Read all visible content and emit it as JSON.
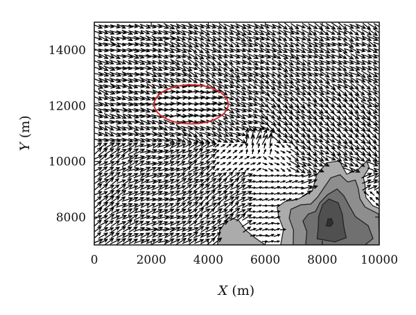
{
  "chart_data": {
    "type": "quiver",
    "xlabel_var": "X",
    "xlabel_unit": " (m)",
    "ylabel_var": "Y",
    "ylabel_unit": " (m)",
    "xlim": [
      0,
      10000
    ],
    "ylim": [
      7000,
      15000
    ],
    "x_ticks": [
      0,
      2000,
      4000,
      6000,
      8000,
      10000
    ],
    "y_ticks": [
      8000,
      10000,
      12000,
      14000
    ],
    "grid": false,
    "legend": "none",
    "ellipse_annotation": {
      "cx": 3400,
      "cy": 12050,
      "rx": 1300,
      "ry": 700,
      "color": "#d42a2a"
    },
    "terrain_contours": [
      {
        "level": 1,
        "fill": "#ababab",
        "points": [
          [
            6540,
            7000
          ],
          [
            6640,
            7560
          ],
          [
            6470,
            8020
          ],
          [
            6420,
            8360
          ],
          [
            6700,
            8560
          ],
          [
            7160,
            8650
          ],
          [
            7650,
            8940
          ],
          [
            7800,
            9510
          ],
          [
            8150,
            9950
          ],
          [
            8600,
            10020
          ],
          [
            8860,
            9540
          ],
          [
            9280,
            9730
          ],
          [
            9560,
            10010
          ],
          [
            9650,
            9780
          ],
          [
            9440,
            9430
          ],
          [
            9500,
            9160
          ],
          [
            9530,
            8710
          ],
          [
            9770,
            8410
          ],
          [
            10000,
            8310
          ],
          [
            10000,
            7000
          ]
        ]
      },
      {
        "level": 1,
        "fill": "#ababab",
        "points": [
          [
            4320,
            7000
          ],
          [
            4400,
            7520
          ],
          [
            4700,
            7980
          ],
          [
            5050,
            7900
          ],
          [
            5320,
            7520
          ],
          [
            5680,
            7230
          ],
          [
            6000,
            7000
          ]
        ]
      },
      {
        "level": 2,
        "fill": "#8e8e8e",
        "points": [
          [
            6980,
            7000
          ],
          [
            6990,
            7530
          ],
          [
            6840,
            7960
          ],
          [
            6900,
            8280
          ],
          [
            7250,
            8440
          ],
          [
            7600,
            8470
          ],
          [
            7840,
            8720
          ],
          [
            8090,
            9100
          ],
          [
            8300,
            9410
          ],
          [
            8620,
            9520
          ],
          [
            8890,
            9260
          ],
          [
            9160,
            9330
          ],
          [
            9260,
            9040
          ],
          [
            9320,
            8660
          ],
          [
            9500,
            8360
          ],
          [
            9980,
            8110
          ],
          [
            10000,
            7000
          ]
        ]
      },
      {
        "level": 3,
        "fill": "#707070",
        "points": [
          [
            7420,
            7060
          ],
          [
            7460,
            7480
          ],
          [
            7320,
            7860
          ],
          [
            7510,
            8110
          ],
          [
            7760,
            8200
          ],
          [
            7920,
            8520
          ],
          [
            8180,
            8800
          ],
          [
            8520,
            9010
          ],
          [
            8760,
            8760
          ],
          [
            8950,
            8400
          ],
          [
            9160,
            8020
          ],
          [
            9610,
            7690
          ],
          [
            9780,
            7230
          ],
          [
            9500,
            7000
          ],
          [
            7420,
            7000
          ]
        ]
      },
      {
        "level": 4,
        "fill": "#505050",
        "points": [
          [
            7820,
            7220
          ],
          [
            7860,
            7600
          ],
          [
            7870,
            8010
          ],
          [
            8010,
            8440
          ],
          [
            8230,
            8650
          ],
          [
            8560,
            8510
          ],
          [
            8700,
            8110
          ],
          [
            8760,
            7640
          ],
          [
            8840,
            7260
          ],
          [
            8450,
            7110
          ],
          [
            7820,
            7220
          ]
        ]
      },
      {
        "level": 5,
        "fill": "#303030",
        "points": [
          [
            8140,
            7680
          ],
          [
            8200,
            7930
          ],
          [
            8320,
            7950
          ],
          [
            8380,
            7780
          ],
          [
            8290,
            7670
          ],
          [
            8140,
            7680
          ]
        ]
      }
    ],
    "vector_field": {
      "x_step": 210,
      "y_step": 215,
      "description_regions": [
        {
          "name": "north-west-flow",
          "x": [
            0,
            5800
          ],
          "y": [
            10600,
            15000
          ],
          "u": 1.0,
          "v": -0.35
        },
        {
          "name": "ellipse-core",
          "x": [
            2200,
            4600
          ],
          "y": [
            11400,
            12700
          ],
          "u": 1.0,
          "v": 0.05
        },
        {
          "name": "south-west-flow",
          "x": [
            0,
            6200
          ],
          "y": [
            7000,
            10600
          ],
          "u": 1.0,
          "v": 0.55
        },
        {
          "name": "east-flow",
          "x": [
            5800,
            10000
          ],
          "y": [
            9500,
            15000
          ],
          "u": 1.0,
          "v": -0.6
        },
        {
          "name": "wake-calm",
          "x": [
            5400,
            7400
          ],
          "y": [
            7000,
            9600
          ],
          "u": 0.35,
          "v": 0.1
        },
        {
          "name": "lee-side",
          "x": [
            8600,
            10000
          ],
          "y": [
            7000,
            9000
          ],
          "u": -0.5,
          "v": 0.5
        }
      ]
    }
  }
}
